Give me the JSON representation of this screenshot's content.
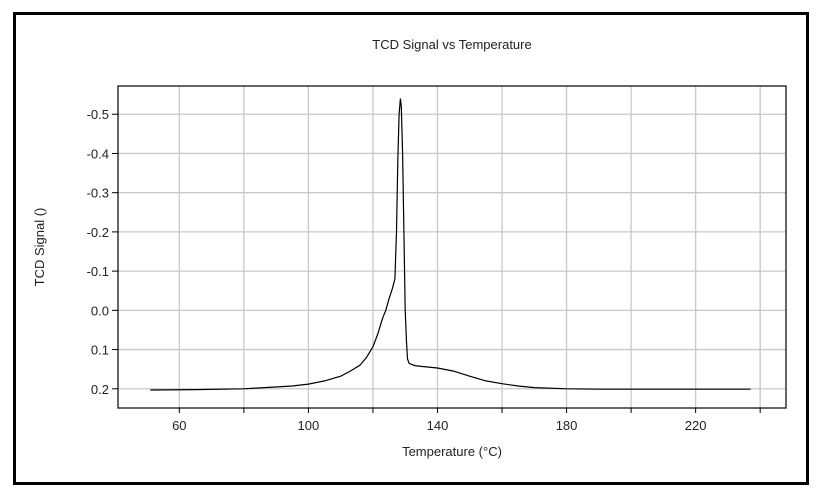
{
  "chart_data": {
    "type": "line",
    "title": "TCD Signal vs Temperature",
    "xlabel": "Temperature (°C)",
    "ylabel": "TCD Signal ()",
    "xlim": [
      41,
      248
    ],
    "ylim": [
      0.249,
      -0.572
    ],
    "y_inverted": true,
    "grid": true,
    "x_ticks": [
      60,
      80,
      100,
      120,
      140,
      160,
      180,
      200,
      220,
      240
    ],
    "x_tick_labels": [
      "60",
      "100",
      "140",
      "180",
      "220"
    ],
    "x_tick_label_values": [
      60,
      100,
      140,
      180,
      220
    ],
    "y_ticks": [
      -0.5,
      -0.4,
      -0.3,
      -0.2,
      -0.1,
      0.0,
      0.1,
      0.2
    ],
    "y_tick_labels": [
      "-0.5",
      "-0.4",
      "-0.3",
      "-0.2",
      "-0.1",
      "0.0",
      "0.1",
      "0.2"
    ],
    "series": [
      {
        "name": "TCD Signal",
        "color": "#000000",
        "x": [
          51,
          65,
          80,
          95,
          100,
          105,
          110,
          113,
          116,
          118,
          120,
          121.5,
          123,
          124,
          125,
          126,
          126.8,
          127.3,
          127.7,
          128.1,
          128.5,
          128.8,
          129.2,
          129.6,
          130,
          130.4,
          130.7,
          131.2,
          132,
          133,
          135,
          140,
          145,
          150,
          155,
          160,
          165,
          170,
          180,
          190,
          200,
          210,
          220,
          230,
          237
        ],
        "y": [
          0.203,
          0.202,
          0.2,
          0.193,
          0.188,
          0.18,
          0.168,
          0.155,
          0.14,
          0.12,
          0.093,
          0.06,
          0.02,
          0.0,
          -0.03,
          -0.055,
          -0.08,
          -0.2,
          -0.38,
          -0.5,
          -0.54,
          -0.52,
          -0.4,
          -0.2,
          0.0,
          0.08,
          0.124,
          0.135,
          0.138,
          0.141,
          0.143,
          0.147,
          0.155,
          0.168,
          0.18,
          0.187,
          0.193,
          0.197,
          0.2,
          0.201,
          0.201,
          0.201,
          0.201,
          0.201,
          0.201
        ]
      }
    ]
  }
}
